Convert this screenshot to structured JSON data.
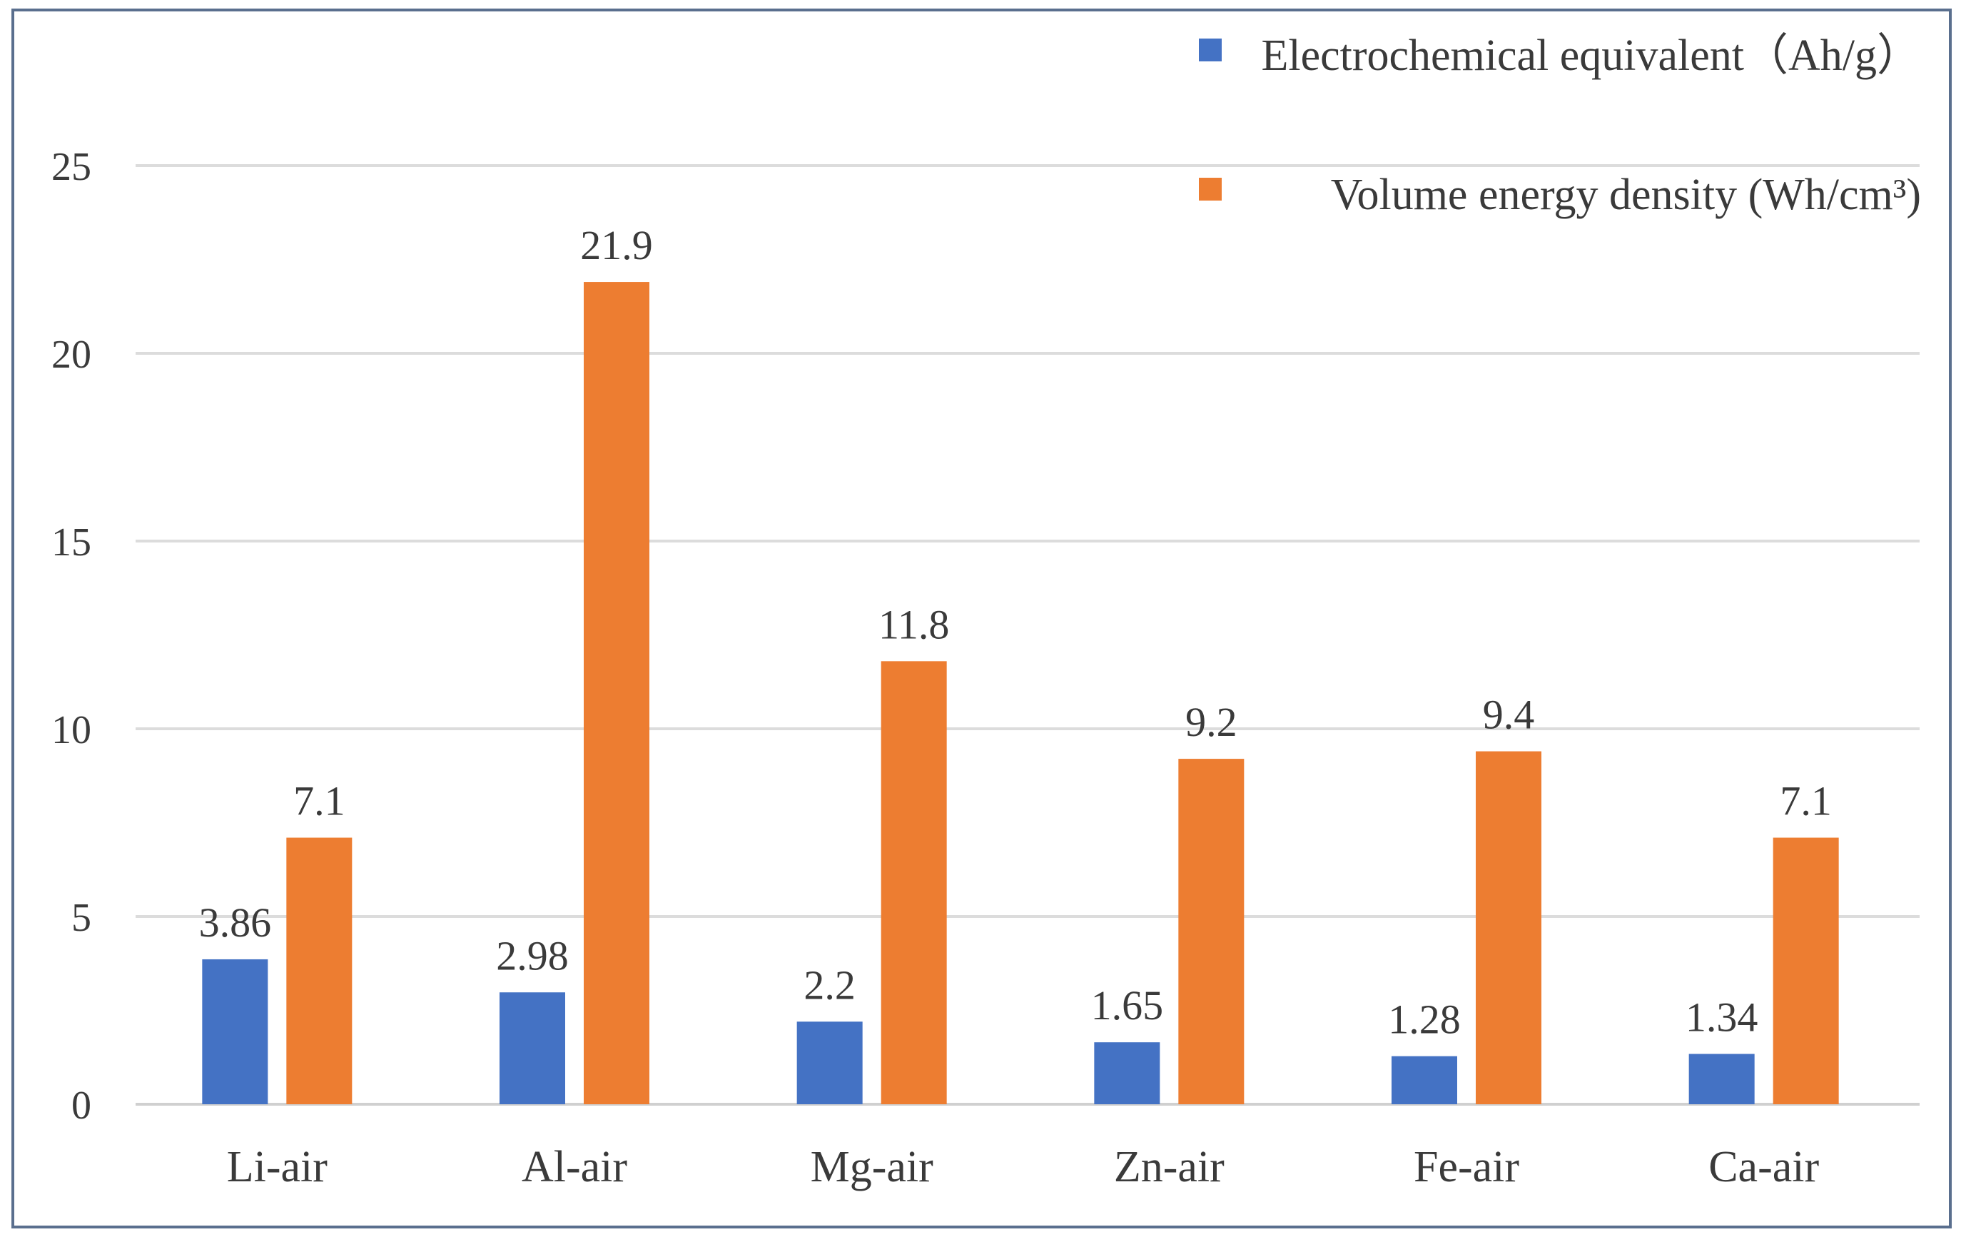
{
  "chart_data": {
    "type": "bar",
    "title": "",
    "xlabel": "",
    "ylabel": "",
    "categories": [
      "Li-air",
      "Al-air",
      "Mg-air",
      "Zn-air",
      "Fe-air",
      "Ca-air"
    ],
    "series": [
      {
        "name": "Electrochemical equivalent（Ah/g）",
        "color": "#4472c4",
        "values": [
          3.86,
          2.98,
          2.2,
          1.65,
          1.28,
          1.34
        ],
        "labels": [
          "3.86",
          "2.98",
          "2.2",
          "1.65",
          "1.28",
          "1.34"
        ]
      },
      {
        "name": "Volume energy density (Wh/cm³)",
        "color": "#ed7d31",
        "values": [
          7.1,
          21.9,
          11.8,
          9.2,
          9.4,
          7.1
        ],
        "labels": [
          "7.1",
          "21.9",
          "11.8",
          "9.2",
          "9.4",
          "7.1"
        ]
      }
    ],
    "ylim": [
      0,
      25
    ],
    "yticks": [
      "0",
      "5",
      "10",
      "15",
      "20",
      "25"
    ],
    "grid": true,
    "legend_position": "top-right"
  }
}
